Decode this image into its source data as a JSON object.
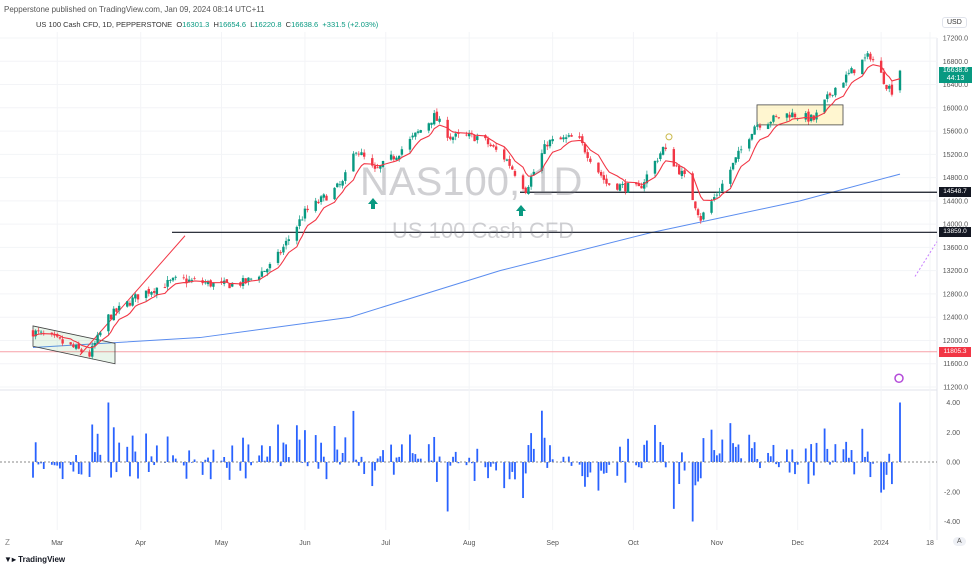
{
  "publisher_line": "Pepperstone published on TradingView.com, Jan 09, 2024 08:14 UTC+11",
  "legend": {
    "symbol": "US 100 Cash CFD, 1D, PEPPERSTONE",
    "o_label": "O",
    "o": "16301.3",
    "h_label": "H",
    "h": "16654.6",
    "l_label": "L",
    "l": "16220.8",
    "c_label": "C",
    "c": "16638.6",
    "change": "+331.5 (+2.03%)"
  },
  "watermark": {
    "title": "NAS100, 1D",
    "subtitle": "US 100 Cash CFD"
  },
  "currency": "USD",
  "price_badge": {
    "price": "16638.6",
    "countdown": "44:13"
  },
  "level_labels": [
    "14548.7",
    "13859.0",
    "11805.3"
  ],
  "price_axis": [
    "17200.0",
    "16800.0",
    "16400.0",
    "16000.0",
    "15600.0",
    "15200.0",
    "14800.0",
    "14400.0",
    "14000.0",
    "13600.0",
    "13200.0",
    "12800.0",
    "12400.0",
    "12000.0",
    "11600.0",
    "11200.0"
  ],
  "osc_axis": [
    "4.00",
    "2.00",
    "0.00",
    "-2.00",
    "-4.00"
  ],
  "time_axis": [
    "Mar",
    "Apr",
    "May",
    "Jun",
    "Jul",
    "Aug",
    "Sep",
    "Oct",
    "Nov",
    "Dec",
    "2024",
    "18"
  ],
  "footer_logo": "TradingView",
  "auto_label": "A",
  "colors": {
    "up": "#089981",
    "down": "#f23645",
    "ema": "#f23645",
    "ma200": "#5b8def",
    "osc": "#2962ff"
  },
  "chart_data": {
    "type": "candlestick",
    "title": "US 100 Cash CFD, 1D",
    "ylim": [
      11200,
      17200
    ],
    "osc_ylim": [
      -4,
      4
    ],
    "horizontal_levels": [
      14548.7,
      13859.0,
      11805.3
    ],
    "price_path": [
      [
        "2023-02-20",
        12150
      ],
      [
        "2023-03-01",
        12000
      ],
      [
        "2023-03-13",
        11750
      ],
      [
        "2023-03-20",
        12400
      ],
      [
        "2023-04-01",
        12800
      ],
      [
        "2023-04-15",
        13050
      ],
      [
        "2023-05-01",
        12950
      ],
      [
        "2023-05-10",
        13000
      ],
      [
        "2023-05-20",
        13300
      ],
      [
        "2023-06-01",
        14200
      ],
      [
        "2023-06-15",
        14700
      ],
      [
        "2023-06-20",
        15300
      ],
      [
        "2023-06-27",
        14900
      ],
      [
        "2023-07-05",
        15200
      ],
      [
        "2023-07-19",
        15850
      ],
      [
        "2023-07-25",
        15500
      ],
      [
        "2023-08-05",
        15500
      ],
      [
        "2023-08-15",
        15100
      ],
      [
        "2023-08-22",
        14600
      ],
      [
        "2023-08-30",
        15400
      ],
      [
        "2023-09-10",
        15500
      ],
      [
        "2023-09-21",
        14700
      ],
      [
        "2023-10-03",
        14600
      ],
      [
        "2023-10-12",
        15300
      ],
      [
        "2023-10-20",
        14800
      ],
      [
        "2023-10-26",
        14100
      ],
      [
        "2023-11-02",
        14600
      ],
      [
        "2023-11-15",
        15700
      ],
      [
        "2023-11-28",
        15900
      ],
      [
        "2023-12-07",
        15800
      ],
      [
        "2023-12-14",
        16300
      ],
      [
        "2023-12-25",
        16800
      ],
      [
        "2023-12-28",
        16900
      ],
      [
        "2024-01-03",
        16400
      ],
      [
        "2024-01-05",
        16300
      ],
      [
        "2024-01-08",
        16638.6
      ]
    ]
  }
}
